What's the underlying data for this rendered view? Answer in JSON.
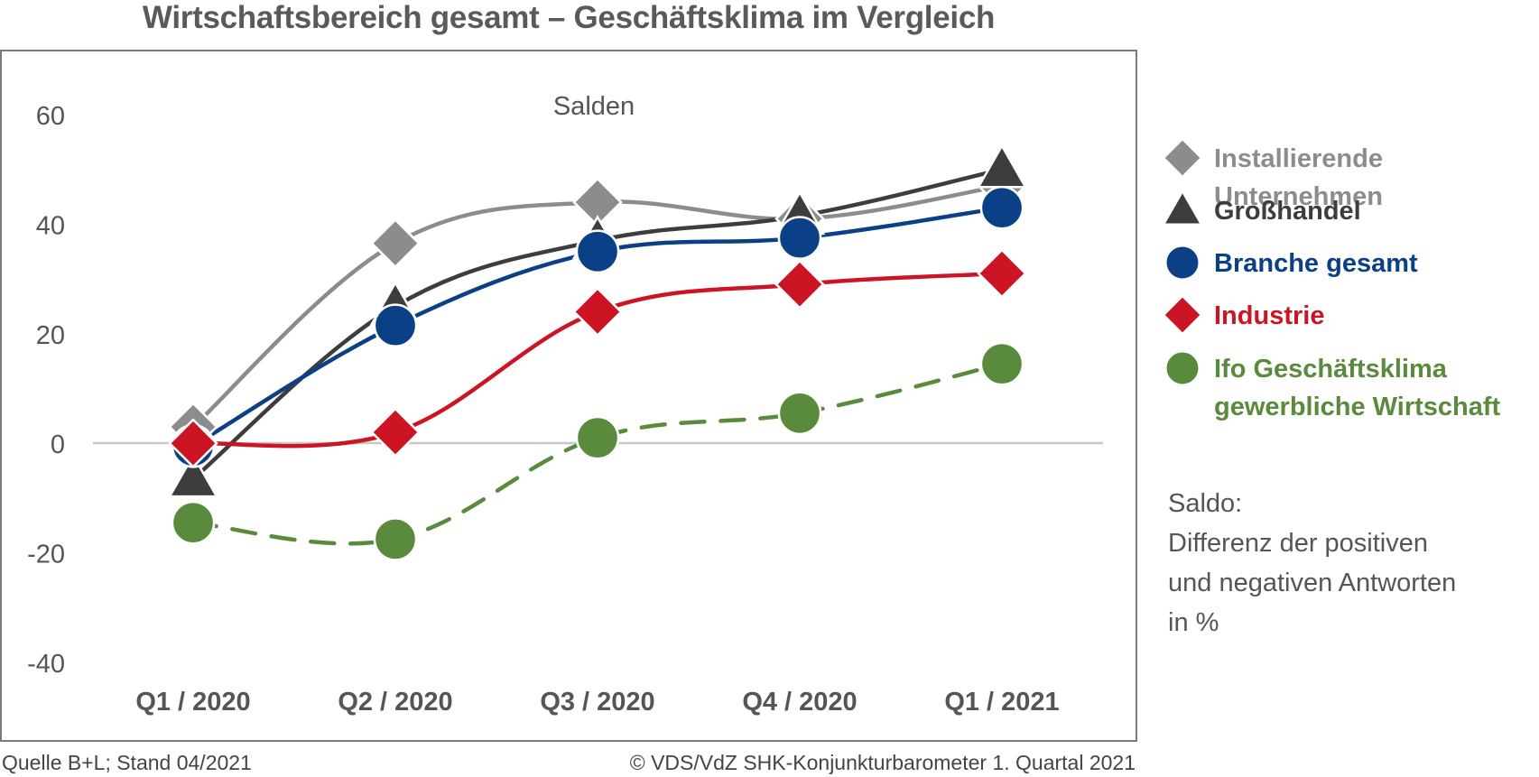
{
  "title": "Wirtschaftsbereich gesamt – Geschäftsklima im Vergleich",
  "footer": {
    "source": "Quelle B+L; Stand 04/2021",
    "copyright": "© VDS/VdZ SHK-Konjunkturbarometer 1. Quartal 2021"
  },
  "note": "Saldo:\nDifferenz der positiven\nund negativen Antworten\nin %",
  "chart_data": {
    "type": "line",
    "subtitle": "Salden",
    "categories": [
      "Q1 / 2020",
      "Q2 / 2020",
      "Q3 / 2020",
      "Q4 / 2020",
      "Q1 / 2021"
    ],
    "y_ticks": [
      "60",
      "40",
      "20",
      "0",
      "-20",
      "-40"
    ],
    "ylim": [
      -40,
      60
    ],
    "legend_position": "right",
    "series": [
      {
        "name": "Installierende Unternehmen",
        "marker": "diamond",
        "color": "#8c8c8c",
        "dashed": false,
        "values": [
          3,
          36.5,
          44,
          41,
          47
        ]
      },
      {
        "name": "Großhandel",
        "marker": "triangle",
        "color": "#3d3d3d",
        "dashed": false,
        "values": [
          -6.5,
          25,
          37,
          41.5,
          50
        ]
      },
      {
        "name": "Branche gesamt",
        "marker": "circle",
        "color": "#0b3f86",
        "dashed": false,
        "values": [
          -0.5,
          21.5,
          35,
          37.5,
          43
        ]
      },
      {
        "name": "Industrie",
        "marker": "diamond",
        "color": "#cc1424",
        "dashed": false,
        "values": [
          0,
          2,
          24,
          29,
          31
        ]
      },
      {
        "name": "Ifo Geschäftsklima\ngewerbliche Wirtschaft",
        "marker": "circle",
        "color": "#5a8a3c",
        "dashed": true,
        "values": [
          -14.5,
          -17.5,
          1,
          5.5,
          14.5
        ]
      }
    ]
  }
}
